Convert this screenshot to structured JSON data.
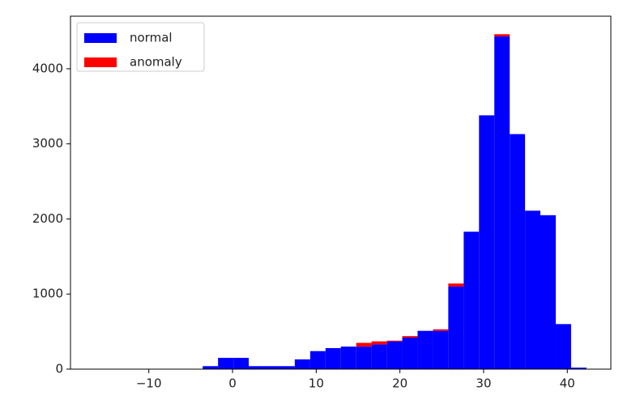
{
  "chart_data": {
    "type": "histogram",
    "stacked": true,
    "legend": "upper left",
    "bins": [
      -16.4,
      -14.57,
      -12.73,
      -10.9,
      -9.06,
      -7.23,
      -5.4,
      -3.56,
      -1.73,
      0.11,
      1.94,
      3.77,
      5.61,
      7.44,
      9.28,
      11.11,
      12.94,
      14.78,
      16.61,
      18.45,
      20.28,
      22.11,
      23.95,
      25.78,
      27.62,
      29.45,
      31.28,
      33.12,
      34.95,
      36.78,
      38.62,
      40.45,
      42.29
    ],
    "series": [
      {
        "name": "normal",
        "color": "#0000ff",
        "values": [
          0,
          0,
          0,
          0,
          0,
          0,
          0,
          40,
          150,
          150,
          40,
          40,
          40,
          130,
          240,
          280,
          300,
          300,
          330,
          370,
          420,
          510,
          510,
          1100,
          1830,
          3380,
          4430,
          3130,
          2110,
          2050,
          600,
          20
        ]
      },
      {
        "name": "anomaly",
        "color": "#ff0000",
        "values": [
          0,
          0,
          0,
          0,
          0,
          0,
          0,
          0,
          0,
          0,
          0,
          0,
          0,
          0,
          0,
          0,
          0,
          50,
          40,
          10,
          20,
          0,
          20,
          40,
          0,
          0,
          30,
          0,
          0,
          0,
          0,
          0
        ]
      }
    ],
    "xlim": [
      -19.36,
      45.2
    ],
    "ylim": [
      0,
      4700
    ],
    "xticks": [
      {
        "value": -10,
        "label": "−10"
      },
      0,
      10,
      20,
      30,
      40
    ],
    "yticks": [
      0,
      1000,
      2000,
      3000,
      4000
    ]
  }
}
